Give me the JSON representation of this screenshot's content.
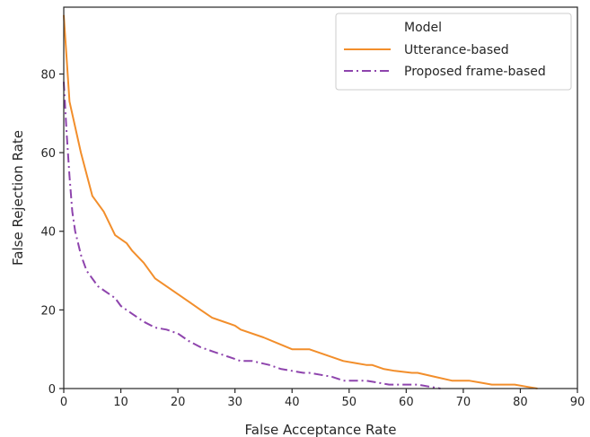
{
  "chart_data": {
    "type": "line",
    "title": "",
    "xlabel": "False Acceptance Rate",
    "ylabel": "False Rejection Rate",
    "xlim": [
      0,
      90
    ],
    "ylim": [
      0,
      97
    ],
    "xticks": [
      0,
      10,
      20,
      30,
      40,
      50,
      60,
      70,
      80,
      90
    ],
    "yticks": [
      0,
      20,
      40,
      60,
      80
    ],
    "grid": false,
    "legend": {
      "title": "Model",
      "placement": "top-right"
    },
    "series": [
      {
        "name": "Utterance-based",
        "color": "#f28e2b",
        "style": "solid",
        "x": [
          0,
          1,
          3,
          5,
          7,
          9,
          11,
          12,
          14,
          16,
          18,
          20,
          22,
          24,
          26,
          28,
          30,
          31,
          35,
          40,
          42,
          43,
          45,
          47,
          49,
          51,
          53,
          54,
          56,
          58,
          61,
          62,
          65,
          68,
          71,
          73,
          75,
          77,
          79,
          81,
          83
        ],
        "y": [
          95,
          73,
          60,
          49,
          45,
          39,
          37,
          35,
          32,
          28,
          26,
          24,
          22,
          20,
          18,
          17,
          16,
          15,
          13,
          10,
          10,
          10,
          9,
          8,
          7,
          6.5,
          6,
          6,
          5,
          4.5,
          4,
          4,
          3,
          2,
          2,
          1.5,
          1,
          1,
          1,
          0.5,
          0
        ]
      },
      {
        "name": "Proposed frame-based",
        "color": "#8e44ad",
        "style": "dashdot",
        "x": [
          0,
          0.5,
          1,
          1.5,
          2,
          3,
          4,
          6,
          8,
          9,
          10,
          12,
          14,
          16,
          18,
          20,
          22,
          24,
          26,
          28,
          30,
          31,
          33,
          36,
          38,
          40,
          42,
          43,
          45,
          47,
          49,
          51,
          53,
          55,
          57,
          59,
          61,
          62,
          64,
          66
        ],
        "y": [
          78,
          65,
          54,
          45,
          40,
          34,
          30,
          26,
          24,
          23,
          21,
          19,
          17,
          15.5,
          15,
          14,
          12,
          10.5,
          9.5,
          8.5,
          7.5,
          7,
          7,
          6,
          5,
          4.5,
          4,
          4,
          3.5,
          3,
          2,
          2,
          2,
          1.5,
          1,
          1,
          1,
          1,
          0.5,
          0
        ]
      }
    ]
  }
}
